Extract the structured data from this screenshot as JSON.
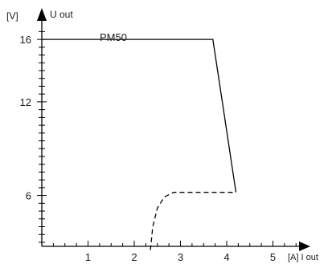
{
  "chart_data": {
    "type": "line",
    "title": "",
    "xlabel": "[A] I out",
    "ylabel": "U out",
    "yunit": "[V]",
    "xlim": [
      0,
      5.7
    ],
    "ylim": [
      2,
      18
    ],
    "x_ticks": [
      1,
      2,
      3,
      4,
      5
    ],
    "y_ticks": [
      6,
      12,
      16
    ],
    "x_minor_step": 0.25,
    "y_minor_step": 0.5,
    "grid": false,
    "series": [
      {
        "name": "PM50",
        "style": "solid",
        "points": [
          [
            0,
            16
          ],
          [
            3.7,
            16
          ],
          [
            4.2,
            6.2
          ]
        ]
      },
      {
        "style": "dashed",
        "points": [
          [
            2.35,
            2.5
          ],
          [
            2.4,
            4.0
          ],
          [
            2.5,
            5.2
          ],
          [
            2.65,
            5.9
          ],
          [
            2.85,
            6.2
          ],
          [
            4.2,
            6.2
          ]
        ]
      }
    ]
  }
}
